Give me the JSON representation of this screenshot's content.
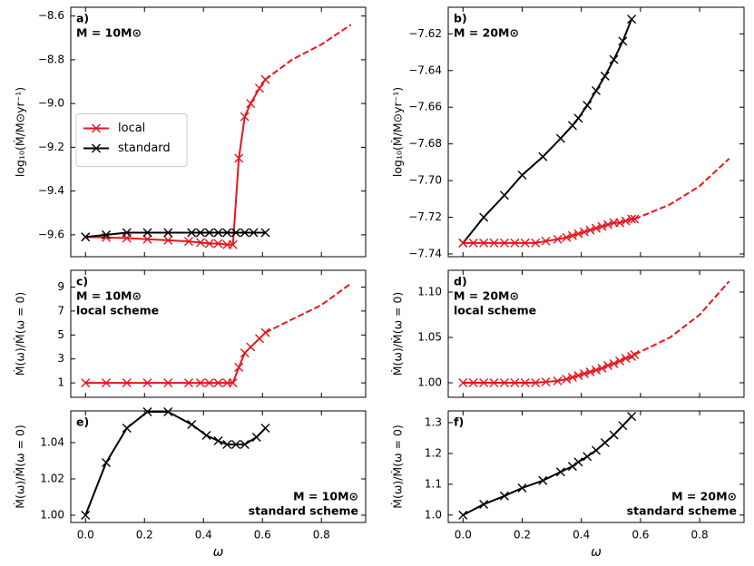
{
  "chart_data": [
    {
      "type": "line",
      "annotations": [
        "a)",
        "M = 10M⊙"
      ],
      "ylabel": "log₁₀(Ṁ/M⊙yr⁻¹)",
      "xlim": [
        -0.05,
        0.95
      ],
      "xticks": [
        {
          "value": 0,
          "label": "0.0"
        },
        0.2,
        0.4,
        0.6,
        0.8
      ],
      "xtick_labels": false,
      "ylim": [
        -9.7,
        -8.56
      ],
      "yticks": [
        {
          "value": -8.6,
          "label": "−8.6"
        },
        {
          "value": -8.8,
          "label": "−8.8"
        },
        {
          "value": -9.0,
          "label": "−9.0"
        },
        {
          "value": -9.2,
          "label": "−9.2"
        },
        {
          "value": -9.4,
          "label": "−9.4"
        },
        {
          "value": -9.6,
          "label": "−9.6"
        }
      ],
      "legend": "center left",
      "series": [
        {
          "name": "local",
          "color": "#e8141c",
          "linestyle": "solid",
          "marker": "x",
          "x": [
            0,
            0.07,
            0.14,
            0.21,
            0.28,
            0.35,
            0.39,
            0.42,
            0.45,
            0.48,
            0.5,
            0.52,
            0.54,
            0.56,
            0.59,
            0.61
          ],
          "values": [
            -9.61,
            -9.612,
            -9.615,
            -9.62,
            -9.625,
            -9.63,
            -9.635,
            -9.64,
            -9.64,
            -9.645,
            -9.645,
            -9.25,
            -9.06,
            -9.0,
            -8.93,
            -8.89
          ]
        },
        {
          "name": "standard",
          "color": "#000000",
          "linestyle": "solid",
          "marker": "x",
          "x": [
            0,
            0.07,
            0.14,
            0.21,
            0.28,
            0.36,
            0.39,
            0.42,
            0.45,
            0.48,
            0.51,
            0.54,
            0.57,
            0.61
          ],
          "values": [
            -9.61,
            -9.6,
            -9.59,
            -9.59,
            -9.59,
            -9.59,
            -9.59,
            -9.59,
            -9.59,
            -9.59,
            -9.59,
            -9.59,
            -9.59,
            -9.59
          ]
        },
        {
          "color": "#e8141c",
          "linestyle": "dashed",
          "marker": "none",
          "x": [
            0.61,
            0.7,
            0.8,
            0.9
          ],
          "values": [
            -8.89,
            -8.8,
            -8.73,
            -8.64
          ]
        }
      ]
    },
    {
      "type": "line",
      "annotations": [
        "b)",
        "M = 20M⊙"
      ],
      "ylabel": "log₁₀(Ṁ/M⊙yr⁻¹)",
      "xlim": [
        -0.05,
        0.95
      ],
      "xticks": [
        {
          "value": 0,
          "label": "0.0"
        },
        0.2,
        0.4,
        0.6,
        0.8
      ],
      "xtick_labels": false,
      "ylim": [
        -7.7415,
        -7.6055
      ],
      "yticks": [
        {
          "value": -7.62,
          "label": "−7.62"
        },
        {
          "value": -7.64,
          "label": "−7.64"
        },
        {
          "value": -7.66,
          "label": "−7.66"
        },
        {
          "value": -7.68,
          "label": "−7.68"
        },
        {
          "value": -7.7,
          "label": "−7.70"
        },
        {
          "value": -7.72,
          "label": "−7.72"
        },
        {
          "value": -7.74,
          "label": "−7.74"
        }
      ],
      "series": [
        {
          "color": "#000000",
          "linestyle": "solid",
          "marker": "x",
          "x": [
            0,
            0.07,
            0.14,
            0.2,
            0.27,
            0.33,
            0.37,
            0.39,
            0.42,
            0.45,
            0.48,
            0.51,
            0.54,
            0.57
          ],
          "values": [
            -7.734,
            -7.72,
            -7.708,
            -7.697,
            -7.687,
            -7.677,
            -7.67,
            -7.666,
            -7.659,
            -7.651,
            -7.643,
            -7.634,
            -7.624,
            -7.612
          ]
        },
        {
          "color": "#e8141c",
          "linestyle": "solid",
          "marker": "x",
          "x": [
            0,
            0.035,
            0.07,
            0.105,
            0.14,
            0.175,
            0.21,
            0.245,
            0.28,
            0.32,
            0.35,
            0.37,
            0.39,
            0.41,
            0.43,
            0.45,
            0.47,
            0.49,
            0.51,
            0.53,
            0.55,
            0.57,
            0.58
          ],
          "values": [
            -7.734,
            -7.734,
            -7.734,
            -7.734,
            -7.734,
            -7.734,
            -7.734,
            -7.734,
            -7.733,
            -7.732,
            -7.731,
            -7.73,
            -7.729,
            -7.728,
            -7.727,
            -7.726,
            -7.725,
            -7.724,
            -7.723,
            -7.723,
            -7.722,
            -7.721,
            -7.721
          ]
        },
        {
          "color": "#e8141c",
          "linestyle": "dashed",
          "marker": "none",
          "x": [
            0.58,
            0.7,
            0.8,
            0.9
          ],
          "values": [
            -7.721,
            -7.713,
            -7.703,
            -7.688
          ]
        }
      ]
    },
    {
      "type": "line",
      "annotations": [
        "c)",
        "M = 10M⊙",
        "local scheme"
      ],
      "ylabel": "Ṁ(ω)/Ṁ(ω = 0)",
      "xlim": [
        -0.05,
        0.95
      ],
      "xticks": [
        {
          "value": 0,
          "label": "0.0"
        },
        0.2,
        0.4,
        0.6,
        0.8
      ],
      "xtick_labels": false,
      "ylim": [
        -0.2,
        10.4
      ],
      "yticks": [
        1,
        3,
        5,
        7,
        9
      ],
      "series": [
        {
          "color": "#e8141c",
          "linestyle": "solid",
          "marker": "x",
          "x": [
            0,
            0.07,
            0.14,
            0.21,
            0.28,
            0.35,
            0.39,
            0.42,
            0.45,
            0.48,
            0.5,
            0.52,
            0.54,
            0.56,
            0.59,
            0.61
          ],
          "values": [
            1,
            1,
            1,
            1,
            1,
            1,
            1,
            1,
            1,
            1,
            1,
            2.3,
            3.5,
            4.0,
            4.7,
            5.2
          ]
        },
        {
          "color": "#e8141c",
          "linestyle": "dashed",
          "marker": "none",
          "x": [
            0.61,
            0.7,
            0.8,
            0.9
          ],
          "values": [
            5.2,
            6.3,
            7.5,
            9.3
          ]
        }
      ]
    },
    {
      "type": "line",
      "annotations": [
        "d)",
        "M = 20M⊙",
        "local scheme"
      ],
      "ylabel": "Ṁ(ω)/Ṁ(ω = 0)",
      "xlim": [
        -0.05,
        0.95
      ],
      "xticks": [
        {
          "value": 0,
          "label": "0.0"
        },
        0.2,
        0.4,
        0.6,
        0.8
      ],
      "xtick_labels": false,
      "ylim": [
        0.984,
        1.124
      ],
      "yticks": [
        {
          "value": 1.0,
          "label": "1.00"
        },
        1.05,
        {
          "value": 1.1,
          "label": "1.10"
        }
      ],
      "series": [
        {
          "color": "#e8141c",
          "linestyle": "solid",
          "marker": "x",
          "x": [
            0,
            0.035,
            0.07,
            0.105,
            0.14,
            0.175,
            0.21,
            0.245,
            0.28,
            0.32,
            0.35,
            0.37,
            0.39,
            0.41,
            0.43,
            0.45,
            0.47,
            0.49,
            0.51,
            0.53,
            0.55,
            0.57,
            0.58
          ],
          "values": [
            1.0,
            1.0,
            1.0,
            1.0,
            1.0,
            1.0,
            1.0,
            1.0,
            1.001,
            1.002,
            1.004,
            1.006,
            1.008,
            1.01,
            1.012,
            1.014,
            1.016,
            1.019,
            1.021,
            1.024,
            1.027,
            1.029,
            1.031
          ]
        },
        {
          "color": "#e8141c",
          "linestyle": "dashed",
          "marker": "none",
          "x": [
            0.58,
            0.7,
            0.8,
            0.9
          ],
          "values": [
            1.031,
            1.05,
            1.075,
            1.112
          ]
        }
      ]
    },
    {
      "type": "line",
      "annotations": [
        "e)",
        "M = 10M⊙",
        "standard scheme"
      ],
      "ylabel": "Ṁ(ω)/Ṁ(ω = 0)",
      "xlabel": "ω",
      "xlim": [
        -0.05,
        0.95
      ],
      "xticks": [
        {
          "value": 0,
          "label": "0.0"
        },
        0.2,
        0.4,
        0.6,
        0.8
      ],
      "xtick_labels": true,
      "ylim": [
        0.996,
        1.0575
      ],
      "yticks": [
        {
          "value": 1.0,
          "label": "1.00"
        },
        1.02,
        1.04
      ],
      "series": [
        {
          "color": "#000000",
          "linestyle": "solid",
          "marker": "x",
          "x": [
            0,
            0.07,
            0.14,
            0.21,
            0.28,
            0.36,
            0.41,
            0.45,
            0.48,
            0.51,
            0.54,
            0.58,
            0.61
          ],
          "values": [
            1.0,
            1.029,
            1.048,
            1.057,
            1.057,
            1.05,
            1.044,
            1.041,
            1.039,
            1.039,
            1.039,
            1.043,
            1.048
          ]
        }
      ]
    },
    {
      "type": "line",
      "annotations": [
        "f)",
        "M = 20M⊙",
        "standard scheme"
      ],
      "ylabel": "Ṁ(ω)/Ṁ(ω = 0)",
      "xlabel": "ω",
      "xlim": [
        -0.05,
        0.95
      ],
      "xticks": [
        {
          "value": 0,
          "label": "0.0"
        },
        0.2,
        0.4,
        0.6,
        0.8
      ],
      "xtick_labels": true,
      "ylim": [
        0.976,
        1.338
      ],
      "yticks": [
        {
          "value": 1.0,
          "label": "1.0"
        },
        1.1,
        1.2,
        1.3
      ],
      "series": [
        {
          "color": "#000000",
          "linestyle": "solid",
          "marker": "x",
          "x": [
            0,
            0.07,
            0.14,
            0.2,
            0.27,
            0.33,
            0.37,
            0.39,
            0.42,
            0.45,
            0.48,
            0.51,
            0.54,
            0.57
          ],
          "values": [
            1.0,
            1.035,
            1.062,
            1.088,
            1.112,
            1.14,
            1.158,
            1.172,
            1.19,
            1.21,
            1.235,
            1.26,
            1.29,
            1.32
          ]
        }
      ]
    }
  ]
}
